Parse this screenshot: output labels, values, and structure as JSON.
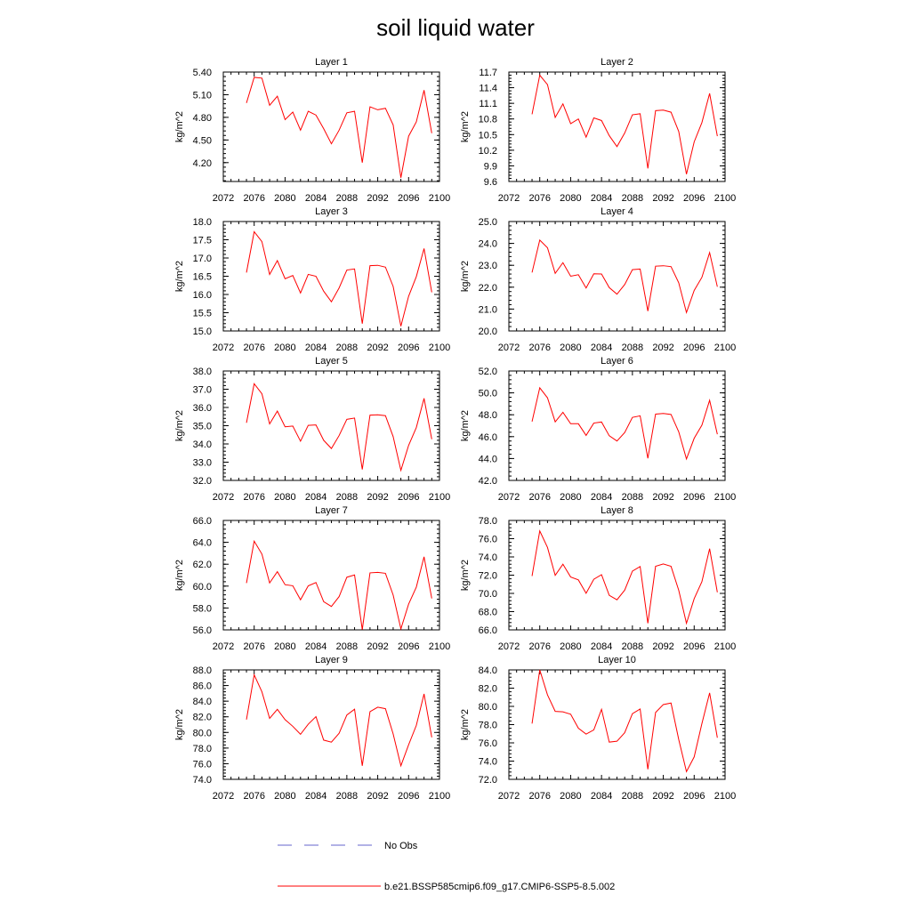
{
  "title": "soil liquid water",
  "colors": {
    "model": "#ff0000",
    "obs": "#6666cc"
  },
  "legend": {
    "obs_label": "No Obs",
    "model_label": "b.e21.BSSP585cmip6.f09_g17.CMIP6-SSP5-8.5.002"
  },
  "chart_data": [
    {
      "type": "line",
      "title": "Layer 1",
      "xlabel": "",
      "ylabel": "kg/m^2",
      "xlim": [
        2072,
        2100
      ],
      "ylim": [
        3.95,
        5.4
      ],
      "xticks": [
        "2072",
        "2076",
        "2080",
        "2084",
        "2088",
        "2092",
        "2096",
        "2100"
      ],
      "yticks": [
        "4.20",
        "4.50",
        "4.80",
        "5.10",
        "5.40"
      ],
      "x": [
        2075,
        2076,
        2077,
        2078,
        2079,
        2080,
        2081,
        2082,
        2083,
        2084,
        2085,
        2086,
        2087,
        2088,
        2089,
        2090,
        2091,
        2092,
        2093,
        2094,
        2095,
        2096,
        2097,
        2098,
        2099
      ],
      "series": [
        {
          "values": [
            4.99,
            5.33,
            5.32,
            4.96,
            5.08,
            4.77,
            4.87,
            4.63,
            4.88,
            4.83,
            4.65,
            4.45,
            4.63,
            4.86,
            4.88,
            4.2,
            4.94,
            4.9,
            4.92,
            4.7,
            4.0,
            4.55,
            4.74,
            5.16,
            4.59
          ]
        }
      ]
    },
    {
      "type": "line",
      "title": "Layer 2",
      "xlabel": "",
      "ylabel": "kg/m^2",
      "xlim": [
        2072,
        2100
      ],
      "ylim": [
        9.6,
        11.7
      ],
      "xticks": [
        "2072",
        "2076",
        "2080",
        "2084",
        "2088",
        "2092",
        "2096",
        "2100"
      ],
      "yticks": [
        "9.6",
        "9.9",
        "10.2",
        "10.5",
        "10.8",
        "11.1",
        "11.4",
        "11.7"
      ],
      "x": [
        2075,
        2076,
        2077,
        2078,
        2079,
        2080,
        2081,
        2082,
        2083,
        2084,
        2085,
        2086,
        2087,
        2088,
        2089,
        2090,
        2091,
        2092,
        2093,
        2094,
        2095,
        2096,
        2097,
        2098,
        2099
      ],
      "series": [
        {
          "values": [
            10.89,
            11.64,
            11.46,
            10.83,
            11.09,
            10.71,
            10.8,
            10.45,
            10.82,
            10.77,
            10.48,
            10.27,
            10.53,
            10.88,
            10.9,
            9.85,
            10.96,
            10.97,
            10.93,
            10.56,
            9.74,
            10.36,
            10.73,
            11.29,
            10.47
          ]
        }
      ]
    },
    {
      "type": "line",
      "title": "Layer 3",
      "xlabel": "",
      "ylabel": "kg/m^2",
      "xlim": [
        2072,
        2100
      ],
      "ylim": [
        15.0,
        18.0
      ],
      "xticks": [
        "2072",
        "2076",
        "2080",
        "2084",
        "2088",
        "2092",
        "2096",
        "2100"
      ],
      "yticks": [
        "15.0",
        "15.5",
        "16.0",
        "16.5",
        "17.0",
        "17.5",
        "18.0"
      ],
      "x": [
        2075,
        2076,
        2077,
        2078,
        2079,
        2080,
        2081,
        2082,
        2083,
        2084,
        2085,
        2086,
        2087,
        2088,
        2089,
        2090,
        2091,
        2092,
        2093,
        2094,
        2095,
        2096,
        2097,
        2098,
        2099
      ],
      "series": [
        {
          "values": [
            16.6,
            17.72,
            17.45,
            16.55,
            16.93,
            16.43,
            16.52,
            16.04,
            16.55,
            16.5,
            16.09,
            15.8,
            16.18,
            16.67,
            16.7,
            15.2,
            16.79,
            16.8,
            16.75,
            16.22,
            15.13,
            15.95,
            16.49,
            17.26,
            16.06
          ]
        }
      ]
    },
    {
      "type": "line",
      "title": "Layer 4",
      "xlabel": "",
      "ylabel": "kg/m^2",
      "xlim": [
        2072,
        2100
      ],
      "ylim": [
        20.0,
        25.0
      ],
      "xticks": [
        "2072",
        "2076",
        "2080",
        "2084",
        "2088",
        "2092",
        "2096",
        "2100"
      ],
      "yticks": [
        "20.0",
        "21.0",
        "22.0",
        "23.0",
        "24.0",
        "25.0"
      ],
      "x": [
        2075,
        2076,
        2077,
        2078,
        2079,
        2080,
        2081,
        2082,
        2083,
        2084,
        2085,
        2086,
        2087,
        2088,
        2089,
        2090,
        2091,
        2092,
        2093,
        2094,
        2095,
        2096,
        2097,
        2098,
        2099
      ],
      "series": [
        {
          "values": [
            22.67,
            24.15,
            23.8,
            22.63,
            23.12,
            22.5,
            22.57,
            21.96,
            22.61,
            22.6,
            21.98,
            21.68,
            22.12,
            22.8,
            22.83,
            20.91,
            22.96,
            22.98,
            22.94,
            22.2,
            20.84,
            21.85,
            22.45,
            23.58,
            22.02
          ]
        }
      ]
    },
    {
      "type": "line",
      "title": "Layer 5",
      "xlabel": "",
      "ylabel": "kg/m^2",
      "xlim": [
        2072,
        2100
      ],
      "ylim": [
        32.0,
        38.0
      ],
      "xticks": [
        "2072",
        "2076",
        "2080",
        "2084",
        "2088",
        "2092",
        "2096",
        "2100"
      ],
      "yticks": [
        "32.0",
        "33.0",
        "34.0",
        "35.0",
        "36.0",
        "37.0",
        "38.0"
      ],
      "x": [
        2075,
        2076,
        2077,
        2078,
        2079,
        2080,
        2081,
        2082,
        2083,
        2084,
        2085,
        2086,
        2087,
        2088,
        2089,
        2090,
        2091,
        2092,
        2093,
        2094,
        2095,
        2096,
        2097,
        2098,
        2099
      ],
      "series": [
        {
          "values": [
            35.16,
            37.3,
            36.75,
            35.1,
            35.8,
            34.94,
            34.98,
            34.15,
            35.02,
            35.04,
            34.2,
            33.75,
            34.46,
            35.35,
            35.42,
            32.6,
            35.58,
            35.6,
            35.55,
            34.4,
            32.55,
            33.92,
            34.9,
            36.5,
            34.26
          ]
        }
      ]
    },
    {
      "type": "line",
      "title": "Layer 6",
      "xlabel": "",
      "ylabel": "kg/m^2",
      "xlim": [
        2072,
        2100
      ],
      "ylim": [
        42.0,
        52.0
      ],
      "xticks": [
        "2072",
        "2076",
        "2080",
        "2084",
        "2088",
        "2092",
        "2096",
        "2100"
      ],
      "yticks": [
        "42.0",
        "44.0",
        "46.0",
        "48.0",
        "50.0",
        "52.0"
      ],
      "x": [
        2075,
        2076,
        2077,
        2078,
        2079,
        2080,
        2081,
        2082,
        2083,
        2084,
        2085,
        2086,
        2087,
        2088,
        2089,
        2090,
        2091,
        2092,
        2093,
        2094,
        2095,
        2096,
        2097,
        2098,
        2099
      ],
      "series": [
        {
          "values": [
            47.38,
            50.46,
            49.55,
            47.35,
            48.22,
            47.18,
            47.18,
            46.11,
            47.24,
            47.34,
            46.08,
            45.6,
            46.37,
            47.76,
            47.9,
            44.02,
            48.06,
            48.12,
            48.03,
            46.44,
            43.96,
            45.85,
            47.05,
            49.32,
            46.22
          ]
        }
      ]
    },
    {
      "type": "line",
      "title": "Layer 7",
      "xlabel": "",
      "ylabel": "kg/m^2",
      "xlim": [
        2072,
        2100
      ],
      "ylim": [
        56.0,
        66.0
      ],
      "xticks": [
        "2072",
        "2076",
        "2080",
        "2084",
        "2088",
        "2092",
        "2096",
        "2100"
      ],
      "yticks": [
        "56.0",
        "58.0",
        "60.0",
        "62.0",
        "64.0",
        "66.0"
      ],
      "x": [
        2075,
        2076,
        2077,
        2078,
        2079,
        2080,
        2081,
        2082,
        2083,
        2084,
        2085,
        2086,
        2087,
        2088,
        2089,
        2090,
        2091,
        2092,
        2093,
        2094,
        2095,
        2096,
        2097,
        2098,
        2099
      ],
      "series": [
        {
          "values": [
            60.28,
            64.11,
            62.93,
            60.29,
            61.32,
            60.13,
            60.03,
            58.75,
            60.02,
            60.33,
            58.58,
            58.14,
            59.04,
            60.81,
            61.02,
            56.02,
            61.21,
            61.25,
            61.17,
            59.18,
            56.09,
            58.35,
            59.91,
            62.68,
            58.87
          ]
        }
      ]
    },
    {
      "type": "line",
      "title": "Layer 8",
      "xlabel": "",
      "ylabel": "kg/m^2",
      "xlim": [
        2072,
        2100
      ],
      "ylim": [
        66.0,
        78.0
      ],
      "xticks": [
        "2072",
        "2076",
        "2080",
        "2084",
        "2088",
        "2092",
        "2096",
        "2100"
      ],
      "yticks": [
        "66.0",
        "68.0",
        "70.0",
        "72.0",
        "74.0",
        "76.0",
        "78.0"
      ],
      "x": [
        2075,
        2076,
        2077,
        2078,
        2079,
        2080,
        2081,
        2082,
        2083,
        2084,
        2085,
        2086,
        2087,
        2088,
        2089,
        2090,
        2091,
        2092,
        2093,
        2094,
        2095,
        2096,
        2097,
        2098,
        2099
      ],
      "series": [
        {
          "values": [
            71.9,
            76.85,
            75.04,
            71.98,
            73.2,
            71.8,
            71.48,
            70.01,
            71.55,
            72.05,
            69.79,
            69.3,
            70.36,
            72.44,
            72.95,
            66.72,
            72.97,
            73.23,
            72.97,
            70.34,
            66.72,
            69.42,
            71.28,
            74.9,
            70.12
          ]
        }
      ]
    },
    {
      "type": "line",
      "title": "Layer 9",
      "xlabel": "",
      "ylabel": "kg/m^2",
      "xlim": [
        2072,
        2100
      ],
      "ylim": [
        74.0,
        88.0
      ],
      "xticks": [
        "2072",
        "2076",
        "2080",
        "2084",
        "2088",
        "2092",
        "2096",
        "2100"
      ],
      "yticks": [
        "74.0",
        "76.0",
        "78.0",
        "80.0",
        "82.0",
        "84.0",
        "86.0",
        "88.0"
      ],
      "x": [
        2075,
        2076,
        2077,
        2078,
        2079,
        2080,
        2081,
        2082,
        2083,
        2084,
        2085,
        2086,
        2087,
        2088,
        2089,
        2090,
        2091,
        2092,
        2093,
        2094,
        2095,
        2096,
        2097,
        2098,
        2099
      ],
      "series": [
        {
          "values": [
            81.65,
            87.37,
            85.2,
            81.8,
            82.96,
            81.64,
            80.78,
            79.76,
            81.05,
            82.02,
            79.02,
            78.76,
            79.89,
            82.23,
            82.97,
            75.73,
            82.66,
            83.23,
            83.04,
            79.81,
            75.73,
            78.42,
            80.9,
            84.93,
            79.37
          ]
        }
      ]
    },
    {
      "type": "line",
      "title": "Layer 10",
      "xlabel": "",
      "ylabel": "kg/m^2",
      "xlim": [
        2072,
        2100
      ],
      "ylim": [
        72.0,
        84.0
      ],
      "xticks": [
        "2072",
        "2076",
        "2080",
        "2084",
        "2088",
        "2092",
        "2096",
        "2100"
      ],
      "yticks": [
        "72.0",
        "74.0",
        "76.0",
        "78.0",
        "80.0",
        "82.0",
        "84.0"
      ],
      "x": [
        2075,
        2076,
        2077,
        2078,
        2079,
        2080,
        2081,
        2082,
        2083,
        2084,
        2085,
        2086,
        2087,
        2088,
        2089,
        2090,
        2091,
        2092,
        2093,
        2094,
        2095,
        2096,
        2097,
        2098,
        2099
      ],
      "series": [
        {
          "values": [
            78.12,
            84.0,
            81.26,
            79.45,
            79.4,
            79.14,
            77.61,
            76.96,
            77.42,
            79.68,
            76.08,
            76.18,
            77.11,
            79.2,
            79.71,
            73.1,
            79.33,
            80.2,
            80.37,
            76.37,
            72.84,
            74.46,
            78.11,
            81.48,
            76.56
          ]
        }
      ]
    }
  ]
}
